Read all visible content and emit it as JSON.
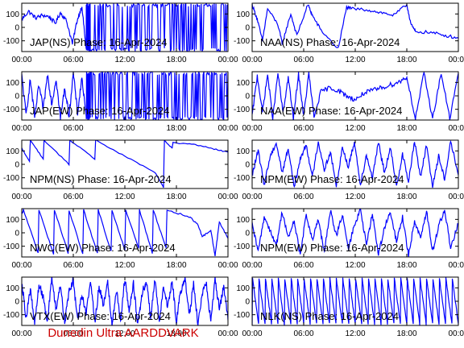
{
  "colors": {
    "trace": "#0000ff",
    "axis": "#000000",
    "credit": "#cc0000",
    "background": "#ffffff"
  },
  "footer": {
    "credit": "Dunedin Ultra AARDDVARK"
  },
  "chart_data": [
    {
      "type": "line",
      "title": "JAP(NS) Phase: 16-Apr-2024",
      "x_ticks": [
        "00:00",
        "06:00",
        "12:00",
        "18:00",
        "00:00"
      ],
      "y_ticks": [
        100,
        0,
        -100
      ],
      "xlim_hours": [
        0,
        24
      ],
      "ylim": [
        -180,
        180
      ],
      "series": [
        {
          "x_hours": [
            0,
            0.8,
            1.6,
            2.4,
            3.2,
            3.9,
            4.5,
            5.2,
            5.9,
            6.4,
            7.0,
            7.5,
            8.0,
            12,
            16,
            20,
            24
          ],
          "y": [
            60,
            120,
            70,
            90,
            80,
            30,
            110,
            50,
            -120,
            40,
            160,
            -170,
            170,
            -170,
            170,
            -170,
            170
          ],
          "noise": 15,
          "dense_from_hour": 7.5
        }
      ]
    },
    {
      "type": "line",
      "title": "NAA(NS) Phase: 16-Apr-2024",
      "x_ticks": [
        "00:00",
        "06:00",
        "12:00",
        "18:00",
        "00:00"
      ],
      "y_ticks": [
        100,
        0,
        -100
      ],
      "xlim_hours": [
        0,
        24
      ],
      "ylim": [
        -180,
        180
      ],
      "series": [
        {
          "x_hours": [
            0,
            0.6,
            1.2,
            1.8,
            3.0,
            3.5,
            4.5,
            5.2,
            6.5,
            7.0,
            8.0,
            10.0,
            11.0,
            11.5,
            13.5,
            15.0,
            16.5,
            18.0,
            18.5,
            19.0,
            21.0,
            22.5,
            24
          ],
          "y": [
            170,
            60,
            -100,
            140,
            20,
            -120,
            100,
            -60,
            170,
            90,
            -20,
            -160,
            150,
            140,
            130,
            110,
            90,
            170,
            20,
            -30,
            -40,
            -60,
            -80
          ],
          "noise": 12
        }
      ]
    },
    {
      "type": "line",
      "title": "JAP(EW) Phase: 16-Apr-2024",
      "x_ticks": [
        "00:00",
        "06:00",
        "12:00",
        "18:00",
        "00:00"
      ],
      "y_ticks": [
        100,
        0,
        -100
      ],
      "xlim_hours": [
        0,
        24
      ],
      "ylim": [
        -180,
        180
      ],
      "series": [
        {
          "x_hours": [
            0,
            0.5,
            1.0,
            1.5,
            2.0,
            2.5,
            3.0,
            3.5,
            4.0,
            4.5,
            5.0,
            5.5,
            6.0,
            6.5,
            7.0,
            7.5,
            8.0,
            12,
            16,
            20,
            24
          ],
          "y": [
            150,
            -140,
            120,
            -160,
            80,
            -100,
            160,
            -60,
            130,
            -170,
            60,
            -150,
            170,
            -130,
            140,
            -170,
            170,
            -170,
            170,
            -170,
            170
          ],
          "noise": 25,
          "dense_from_hour": 7.5
        }
      ]
    },
    {
      "type": "line",
      "title": "NAA(EW) Phase: 16-Apr-2024",
      "x_ticks": [
        "00:00",
        "06:00",
        "12:00",
        "18:00",
        "00:00"
      ],
      "y_ticks": [
        100,
        0,
        -100
      ],
      "xlim_hours": [
        0,
        24
      ],
      "ylim": [
        -180,
        180
      ],
      "series": [
        {
          "x_hours": [
            0,
            0.6,
            1.2,
            1.8,
            2.4,
            3.0,
            3.6,
            4.2,
            4.8,
            5.4,
            6.0,
            6.6,
            7.2,
            8.0,
            9.0,
            10.0,
            11.0,
            12.0,
            13.0,
            14.0,
            15.0,
            16.0,
            17.0,
            18.0,
            19.0,
            20.0,
            21.0,
            22.0,
            23.0,
            24
          ],
          "y": [
            -150,
            150,
            -120,
            160,
            -170,
            170,
            -130,
            140,
            -170,
            160,
            -150,
            170,
            -160,
            30,
            60,
            40,
            0,
            -30,
            20,
            40,
            60,
            80,
            100,
            140,
            -170,
            170,
            -170,
            170,
            -170,
            170
          ],
          "noise": 18
        }
      ]
    },
    {
      "type": "line",
      "title": "NPM(NS) Phase: 16-Apr-2024",
      "x_ticks": [
        "00:00",
        "06:00",
        "12:00",
        "18:00",
        "00:00"
      ],
      "y_ticks": [
        100,
        0,
        -100
      ],
      "xlim_hours": [
        0,
        24
      ],
      "ylim": [
        -180,
        180
      ],
      "series": [
        {
          "x_hours": [
            0,
            0.9,
            1.0,
            2.5,
            2.6,
            5.5,
            5.6,
            8.5,
            8.6,
            12.0,
            15.5,
            16.5,
            16.6,
            17.5,
            17.6,
            20.0,
            22.0,
            24
          ],
          "y": [
            120,
            20,
            180,
            40,
            180,
            0,
            180,
            40,
            180,
            60,
            -60,
            -170,
            180,
            120,
            160,
            150,
            120,
            90
          ],
          "noise": 4
        }
      ]
    },
    {
      "type": "line",
      "title": "NPM(EW) Phase: 16-Apr-2024",
      "x_ticks": [
        "00:00",
        "06:00",
        "12:00",
        "18:00",
        "00:00"
      ],
      "y_ticks": [
        100,
        0,
        -100
      ],
      "xlim_hours": [
        0,
        24
      ],
      "ylim": [
        -180,
        180
      ],
      "series": [
        {
          "x_hours": [
            0,
            0.7,
            1.4,
            2.1,
            2.8,
            3.5,
            4.2,
            4.9,
            5.6,
            6.3,
            7.0,
            7.7,
            8.4,
            9.1,
            9.8,
            10.5,
            11.2,
            11.9,
            12.6,
            13.3,
            14.0,
            14.7,
            15.4,
            16.1,
            16.8,
            17.5,
            18.2,
            18.9,
            19.6,
            20.3,
            21.0,
            21.7,
            22.4,
            23.1,
            24
          ],
          "y": [
            -80,
            100,
            -150,
            60,
            160,
            -60,
            120,
            -170,
            40,
            150,
            -100,
            170,
            -40,
            90,
            -160,
            130,
            -20,
            170,
            -150,
            70,
            -100,
            160,
            -60,
            120,
            -170,
            80,
            -130,
            170,
            -90,
            140,
            -160,
            60,
            -110,
            170,
            -80
          ],
          "noise": 20
        }
      ]
    },
    {
      "type": "line",
      "title": "NWC(EW) Phase: 16-Apr-2024",
      "x_ticks": [
        "00:00",
        "06:00",
        "12:00",
        "18:00",
        "00:00"
      ],
      "y_ticks": [
        100,
        0,
        -100
      ],
      "xlim_hours": [
        0,
        24
      ],
      "ylim": [
        -180,
        180
      ],
      "series": [
        {
          "x_hours": [
            0,
            0.2,
            1.9,
            2.0,
            3.7,
            3.8,
            5.4,
            5.5,
            7.1,
            7.2,
            8.8,
            8.9,
            10.4,
            10.5,
            12.0,
            12.1,
            13.6,
            13.7,
            15.2,
            15.3,
            16.8,
            16.9,
            19.5,
            20.5,
            21.0,
            22.0,
            22.5,
            23.0,
            24
          ],
          "y": [
            140,
            170,
            -150,
            170,
            -160,
            170,
            -150,
            170,
            -160,
            170,
            -150,
            170,
            -140,
            170,
            -130,
            170,
            -120,
            170,
            -150,
            170,
            -110,
            170,
            120,
            60,
            -30,
            20,
            -170,
            80,
            -40
          ],
          "noise": 6
        }
      ]
    },
    {
      "type": "line",
      "title": "NPM(EW) Phase: 16-Apr-2024",
      "x_ticks": [
        "00:00",
        "06:00",
        "12:00",
        "18:00",
        "00:00"
      ],
      "y_ticks": [
        100,
        0,
        -100
      ],
      "xlim_hours": [
        0,
        24
      ],
      "ylim": [
        -180,
        180
      ],
      "series": [
        {
          "x_hours": [
            0,
            0.7,
            1.4,
            2.1,
            2.8,
            3.5,
            4.2,
            4.9,
            5.6,
            6.3,
            7.0,
            7.7,
            8.4,
            9.1,
            9.8,
            10.5,
            11.2,
            11.9,
            12.6,
            13.3,
            14.0,
            14.7,
            15.4,
            16.1,
            16.8,
            17.5,
            18.2,
            18.9,
            19.6,
            20.3,
            21.0,
            21.7,
            22.4,
            23.1,
            24
          ],
          "y": [
            60,
            -140,
            120,
            20,
            -100,
            160,
            -40,
            90,
            -170,
            140,
            -60,
            100,
            -150,
            170,
            -20,
            130,
            -120,
            60,
            170,
            -90,
            140,
            -160,
            40,
            150,
            -70,
            120,
            -170,
            90,
            -30,
            160,
            -140,
            50,
            170,
            -110,
            70
          ],
          "noise": 20
        }
      ]
    },
    {
      "type": "line",
      "title": "VTX(EW) Phase: 16-Apr-2024",
      "x_ticks": [
        "00:00",
        "06:00",
        "12:00",
        "18:00",
        "00:00"
      ],
      "y_ticks": [
        100,
        0,
        -100
      ],
      "xlim_hours": [
        0,
        24
      ],
      "ylim": [
        -180,
        180
      ],
      "series": [
        {
          "x_hours": [
            0,
            0.5,
            1.0,
            1.5,
            2.0,
            2.5,
            3.0,
            3.5,
            4.0,
            4.5,
            5.0,
            5.5,
            6.0,
            6.5,
            7.0,
            7.5,
            8.0,
            8.5,
            9.0,
            9.5,
            10.0,
            10.5,
            11.0,
            11.5,
            12.0,
            12.5,
            13.0,
            13.5,
            14.0,
            14.5,
            15.0,
            15.5,
            16.0,
            16.5,
            17.0,
            17.5,
            18.0,
            18.5,
            19.0,
            19.5,
            20.0,
            20.5,
            21.0,
            21.5,
            22.0,
            22.5,
            23.0,
            23.5,
            24
          ],
          "y": [
            150,
            -120,
            90,
            -170,
            120,
            40,
            -150,
            170,
            -60,
            130,
            -170,
            80,
            160,
            -140,
            60,
            -100,
            170,
            -160,
            110,
            -30,
            150,
            -170,
            90,
            -140,
            170,
            -80,
            130,
            -170,
            60,
            150,
            -120,
            170,
            -160,
            100,
            -40,
            160,
            -150,
            80,
            170,
            -110,
            140,
            -170,
            60,
            120,
            -150,
            170,
            -60,
            110,
            -140
          ],
          "noise": 30
        }
      ]
    },
    {
      "type": "line",
      "title": "NLK(NS) Phase: 16-Apr-2024",
      "x_ticks": [
        "00:00",
        "06:00",
        "12:00",
        "18:00",
        "00:00"
      ],
      "y_ticks": [
        100,
        0,
        -100
      ],
      "xlim_hours": [
        0,
        24
      ],
      "ylim": [
        -180,
        180
      ],
      "series": [
        {
          "x_hours": [
            0,
            0.05,
            0.75,
            0.8,
            1.5,
            1.55,
            2.25,
            2.3,
            3.0,
            3.05,
            3.75,
            3.8,
            4.5,
            4.55,
            5.25,
            5.3,
            6.0,
            6.05,
            6.75,
            6.8,
            7.5,
            7.55,
            8.25,
            8.3,
            9.0,
            9.05,
            9.75,
            9.8,
            10.5,
            10.55,
            11.25,
            11.3,
            12.0,
            12.05,
            12.75,
            12.8,
            13.5,
            13.55,
            14.25,
            14.3,
            15.0,
            15.05,
            15.75,
            15.8,
            16.5,
            16.55,
            17.25,
            17.3,
            18.0,
            18.05,
            18.75,
            18.8,
            19.5,
            19.55,
            20.25,
            20.3,
            21.0,
            21.05,
            21.75,
            21.8,
            22.5,
            22.55,
            23.25,
            23.3,
            24
          ],
          "y": [
            -170,
            170,
            -170,
            170,
            -170,
            170,
            -170,
            170,
            -170,
            170,
            -170,
            170,
            -170,
            170,
            -170,
            170,
            -170,
            170,
            -170,
            170,
            -170,
            170,
            -170,
            170,
            -170,
            170,
            -170,
            170,
            -170,
            170,
            -170,
            170,
            -170,
            170,
            -170,
            170,
            -170,
            170,
            -170,
            170,
            -170,
            170,
            -170,
            170,
            -170,
            170,
            -170,
            170,
            -170,
            170,
            -170,
            170,
            -170,
            170,
            -170,
            170,
            -170,
            170,
            -170,
            170,
            -170,
            170,
            -170,
            170,
            -170
          ],
          "noise": 8
        }
      ]
    }
  ]
}
